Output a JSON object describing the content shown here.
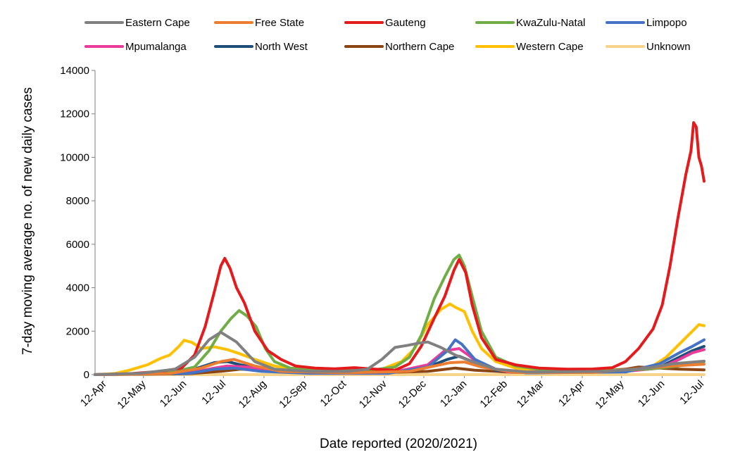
{
  "chart_data": {
    "type": "line",
    "title": "",
    "xlabel": "Date reported (2020/2021)",
    "ylabel": "7-day moving average no. of new daily cases",
    "ylim": [
      0,
      14000
    ],
    "yticks": [
      0,
      2000,
      4000,
      6000,
      8000,
      10000,
      12000,
      14000
    ],
    "xlim": [
      "2020-04-05",
      "2021-07-14"
    ],
    "xticks": [
      {
        "date": "2020-04-12",
        "label": "12-Apr"
      },
      {
        "date": "2020-05-12",
        "label": "12-May"
      },
      {
        "date": "2020-06-12",
        "label": "12-Jun"
      },
      {
        "date": "2020-07-12",
        "label": "12-Jul"
      },
      {
        "date": "2020-08-12",
        "label": "12-Aug"
      },
      {
        "date": "2020-09-12",
        "label": "12-Sep"
      },
      {
        "date": "2020-10-12",
        "label": "12-Oct"
      },
      {
        "date": "2020-11-12",
        "label": "12-Nov"
      },
      {
        "date": "2020-12-12",
        "label": "12-Dec"
      },
      {
        "date": "2021-01-12",
        "label": "12-Jan"
      },
      {
        "date": "2021-02-12",
        "label": "12-Feb"
      },
      {
        "date": "2021-03-12",
        "label": "12-Mar"
      },
      {
        "date": "2021-04-12",
        "label": "12-Apr"
      },
      {
        "date": "2021-05-12",
        "label": "12-May"
      },
      {
        "date": "2021-06-12",
        "label": "12-Jun"
      },
      {
        "date": "2021-07-12",
        "label": "12-Jul"
      }
    ],
    "grid": false,
    "legend_position": "top",
    "series": [
      {
        "name": "Eastern Cape",
        "color": "#808080",
        "points": [
          [
            "2020-04-05",
            0
          ],
          [
            "2020-05-10",
            60
          ],
          [
            "2020-06-05",
            250
          ],
          [
            "2020-06-20",
            800
          ],
          [
            "2020-07-01",
            1600
          ],
          [
            "2020-07-10",
            1950
          ],
          [
            "2020-07-22",
            1500
          ],
          [
            "2020-08-05",
            600
          ],
          [
            "2020-08-20",
            250
          ],
          [
            "2020-09-15",
            150
          ],
          [
            "2020-10-15",
            150
          ],
          [
            "2020-10-30",
            250
          ],
          [
            "2020-11-10",
            700
          ],
          [
            "2020-11-20",
            1250
          ],
          [
            "2020-11-30",
            1350
          ],
          [
            "2020-12-08",
            1450
          ],
          [
            "2020-12-15",
            1500
          ],
          [
            "2020-12-25",
            1250
          ],
          [
            "2021-01-05",
            900
          ],
          [
            "2021-01-18",
            600
          ],
          [
            "2021-02-05",
            250
          ],
          [
            "2021-03-01",
            120
          ],
          [
            "2021-05-01",
            150
          ],
          [
            "2021-06-01",
            300
          ],
          [
            "2021-06-20",
            500
          ],
          [
            "2021-07-14",
            620
          ]
        ]
      },
      {
        "name": "Free State",
        "color": "#ED7D31",
        "points": [
          [
            "2020-04-05",
            0
          ],
          [
            "2020-06-01",
            50
          ],
          [
            "2020-06-25",
            300
          ],
          [
            "2020-07-10",
            600
          ],
          [
            "2020-07-20",
            700
          ],
          [
            "2020-08-05",
            400
          ],
          [
            "2020-08-25",
            150
          ],
          [
            "2020-10-15",
            80
          ],
          [
            "2020-12-01",
            150
          ],
          [
            "2021-01-01",
            550
          ],
          [
            "2021-01-12",
            580
          ],
          [
            "2021-01-25",
            350
          ],
          [
            "2021-02-20",
            100
          ],
          [
            "2021-04-20",
            100
          ],
          [
            "2021-05-20",
            250
          ],
          [
            "2021-06-20",
            400
          ],
          [
            "2021-07-14",
            480
          ]
        ]
      },
      {
        "name": "Gauteng",
        "color": "#E41A1C",
        "points": [
          [
            "2020-04-05",
            0
          ],
          [
            "2020-05-01",
            40
          ],
          [
            "2020-05-25",
            150
          ],
          [
            "2020-06-10",
            300
          ],
          [
            "2020-06-20",
            900
          ],
          [
            "2020-06-28",
            2200
          ],
          [
            "2020-07-05",
            3800
          ],
          [
            "2020-07-10",
            5000
          ],
          [
            "2020-07-13",
            5350
          ],
          [
            "2020-07-17",
            4900
          ],
          [
            "2020-07-22",
            4000
          ],
          [
            "2020-07-28",
            3300
          ],
          [
            "2020-08-05",
            2000
          ],
          [
            "2020-08-15",
            1100
          ],
          [
            "2020-08-25",
            700
          ],
          [
            "2020-09-05",
            400
          ],
          [
            "2020-09-20",
            300
          ],
          [
            "2020-10-05",
            270
          ],
          [
            "2020-10-20",
            320
          ],
          [
            "2020-11-05",
            250
          ],
          [
            "2020-11-20",
            200
          ],
          [
            "2020-12-01",
            500
          ],
          [
            "2020-12-10",
            1300
          ],
          [
            "2020-12-20",
            2600
          ],
          [
            "2020-12-28",
            3600
          ],
          [
            "2021-01-04",
            4800
          ],
          [
            "2021-01-08",
            5300
          ],
          [
            "2021-01-13",
            4700
          ],
          [
            "2021-01-18",
            3200
          ],
          [
            "2021-01-25",
            1700
          ],
          [
            "2021-02-05",
            700
          ],
          [
            "2021-02-20",
            450
          ],
          [
            "2021-03-10",
            300
          ],
          [
            "2021-04-01",
            250
          ],
          [
            "2021-04-20",
            260
          ],
          [
            "2021-05-05",
            320
          ],
          [
            "2021-05-15",
            600
          ],
          [
            "2021-05-25",
            1200
          ],
          [
            "2021-06-05",
            2100
          ],
          [
            "2021-06-12",
            3200
          ],
          [
            "2021-06-18",
            5000
          ],
          [
            "2021-06-24",
            7200
          ],
          [
            "2021-06-30",
            9200
          ],
          [
            "2021-07-04",
            10300
          ],
          [
            "2021-07-06",
            11600
          ],
          [
            "2021-07-08",
            11400
          ],
          [
            "2021-07-10",
            10000
          ],
          [
            "2021-07-12",
            9600
          ],
          [
            "2021-07-14",
            8900
          ]
        ]
      },
      {
        "name": "KwaZulu-Natal",
        "color": "#70AD47",
        "points": [
          [
            "2020-04-05",
            0
          ],
          [
            "2020-06-01",
            80
          ],
          [
            "2020-06-20",
            350
          ],
          [
            "2020-07-01",
            1100
          ],
          [
            "2020-07-10",
            2000
          ],
          [
            "2020-07-18",
            2600
          ],
          [
            "2020-07-24",
            2950
          ],
          [
            "2020-07-30",
            2700
          ],
          [
            "2020-08-06",
            2200
          ],
          [
            "2020-08-13",
            1200
          ],
          [
            "2020-08-20",
            600
          ],
          [
            "2020-09-01",
            300
          ],
          [
            "2020-10-01",
            180
          ],
          [
            "2020-11-01",
            200
          ],
          [
            "2020-11-20",
            350
          ],
          [
            "2020-12-01",
            800
          ],
          [
            "2020-12-10",
            1800
          ],
          [
            "2020-12-20",
            3500
          ],
          [
            "2020-12-28",
            4500
          ],
          [
            "2021-01-04",
            5300
          ],
          [
            "2021-01-08",
            5500
          ],
          [
            "2021-01-12",
            5000
          ],
          [
            "2021-01-18",
            3600
          ],
          [
            "2021-01-25",
            2000
          ],
          [
            "2021-02-05",
            800
          ],
          [
            "2021-02-20",
            400
          ],
          [
            "2021-03-15",
            200
          ],
          [
            "2021-05-01",
            200
          ],
          [
            "2021-06-01",
            250
          ],
          [
            "2021-06-25",
            400
          ],
          [
            "2021-07-14",
            600
          ]
        ]
      },
      {
        "name": "Limpopo",
        "color": "#4472C4",
        "points": [
          [
            "2020-04-05",
            0
          ],
          [
            "2020-06-15",
            50
          ],
          [
            "2020-07-05",
            250
          ],
          [
            "2020-07-20",
            300
          ],
          [
            "2020-08-10",
            150
          ],
          [
            "2020-09-15",
            60
          ],
          [
            "2020-11-15",
            60
          ],
          [
            "2020-12-15",
            350
          ],
          [
            "2020-12-30",
            1100
          ],
          [
            "2021-01-05",
            1600
          ],
          [
            "2021-01-10",
            1400
          ],
          [
            "2021-01-20",
            700
          ],
          [
            "2021-02-05",
            250
          ],
          [
            "2021-03-01",
            80
          ],
          [
            "2021-05-15",
            120
          ],
          [
            "2021-06-10",
            500
          ],
          [
            "2021-06-25",
            1000
          ],
          [
            "2021-07-05",
            1300
          ],
          [
            "2021-07-14",
            1600
          ]
        ]
      },
      {
        "name": "Mpumalanga",
        "color": "#E93C9A",
        "points": [
          [
            "2020-04-05",
            0
          ],
          [
            "2020-06-15",
            60
          ],
          [
            "2020-07-05",
            300
          ],
          [
            "2020-07-15",
            400
          ],
          [
            "2020-07-30",
            350
          ],
          [
            "2020-08-15",
            200
          ],
          [
            "2020-09-15",
            60
          ],
          [
            "2020-11-15",
            60
          ],
          [
            "2020-12-15",
            450
          ],
          [
            "2020-12-28",
            1100
          ],
          [
            "2021-01-08",
            1200
          ],
          [
            "2021-01-15",
            900
          ],
          [
            "2021-01-25",
            400
          ],
          [
            "2021-02-15",
            120
          ],
          [
            "2021-05-15",
            150
          ],
          [
            "2021-06-10",
            300
          ],
          [
            "2021-06-25",
            700
          ],
          [
            "2021-07-05",
            1000
          ],
          [
            "2021-07-14",
            1150
          ]
        ]
      },
      {
        "name": "North West",
        "color": "#1F4E79",
        "points": [
          [
            "2020-04-05",
            0
          ],
          [
            "2020-06-10",
            80
          ],
          [
            "2020-06-25",
            350
          ],
          [
            "2020-07-05",
            550
          ],
          [
            "2020-07-15",
            600
          ],
          [
            "2020-07-25",
            450
          ],
          [
            "2020-08-15",
            200
          ],
          [
            "2020-09-15",
            80
          ],
          [
            "2020-11-15",
            80
          ],
          [
            "2020-12-15",
            350
          ],
          [
            "2020-12-30",
            700
          ],
          [
            "2021-01-08",
            850
          ],
          [
            "2021-01-20",
            550
          ],
          [
            "2021-02-05",
            200
          ],
          [
            "2021-03-01",
            80
          ],
          [
            "2021-05-15",
            150
          ],
          [
            "2021-06-10",
            350
          ],
          [
            "2021-06-25",
            800
          ],
          [
            "2021-07-05",
            1100
          ],
          [
            "2021-07-14",
            1300
          ]
        ]
      },
      {
        "name": "Northern Cape",
        "color": "#8B4513",
        "points": [
          [
            "2020-04-05",
            0
          ],
          [
            "2020-06-15",
            40
          ],
          [
            "2020-07-10",
            150
          ],
          [
            "2020-07-25",
            250
          ],
          [
            "2020-08-10",
            200
          ],
          [
            "2020-09-10",
            100
          ],
          [
            "2020-11-01",
            80
          ],
          [
            "2020-12-15",
            150
          ],
          [
            "2021-01-05",
            300
          ],
          [
            "2021-01-20",
            200
          ],
          [
            "2021-02-20",
            100
          ],
          [
            "2021-04-20",
            150
          ],
          [
            "2021-05-15",
            250
          ],
          [
            "2021-05-25",
            350
          ],
          [
            "2021-06-10",
            300
          ],
          [
            "2021-06-25",
            250
          ],
          [
            "2021-07-14",
            220
          ]
        ]
      },
      {
        "name": "Western Cape",
        "color": "#FFC000",
        "points": [
          [
            "2020-04-05",
            0
          ],
          [
            "2020-04-20",
            50
          ],
          [
            "2020-05-01",
            200
          ],
          [
            "2020-05-15",
            450
          ],
          [
            "2020-05-25",
            750
          ],
          [
            "2020-06-01",
            900
          ],
          [
            "2020-06-08",
            1300
          ],
          [
            "2020-06-12",
            1580
          ],
          [
            "2020-06-18",
            1480
          ],
          [
            "2020-06-25",
            1200
          ],
          [
            "2020-07-05",
            1280
          ],
          [
            "2020-07-15",
            1150
          ],
          [
            "2020-07-25",
            950
          ],
          [
            "2020-08-05",
            700
          ],
          [
            "2020-08-20",
            400
          ],
          [
            "2020-09-05",
            250
          ],
          [
            "2020-10-01",
            150
          ],
          [
            "2020-10-25",
            150
          ],
          [
            "2020-11-10",
            250
          ],
          [
            "2020-11-25",
            600
          ],
          [
            "2020-12-05",
            1200
          ],
          [
            "2020-12-15",
            2300
          ],
          [
            "2020-12-25",
            3000
          ],
          [
            "2021-01-01",
            3250
          ],
          [
            "2021-01-05",
            3100
          ],
          [
            "2021-01-12",
            2900
          ],
          [
            "2021-01-18",
            2000
          ],
          [
            "2021-01-25",
            1200
          ],
          [
            "2021-02-05",
            600
          ],
          [
            "2021-02-20",
            300
          ],
          [
            "2021-03-20",
            150
          ],
          [
            "2021-05-01",
            120
          ],
          [
            "2021-05-20",
            180
          ],
          [
            "2021-06-05",
            400
          ],
          [
            "2021-06-15",
            800
          ],
          [
            "2021-06-25",
            1400
          ],
          [
            "2021-07-05",
            2000
          ],
          [
            "2021-07-10",
            2300
          ],
          [
            "2021-07-14",
            2250
          ]
        ]
      },
      {
        "name": "Unknown",
        "color": "#F8D38A",
        "points": [
          [
            "2020-04-05",
            0
          ],
          [
            "2021-07-14",
            0
          ]
        ]
      }
    ]
  }
}
